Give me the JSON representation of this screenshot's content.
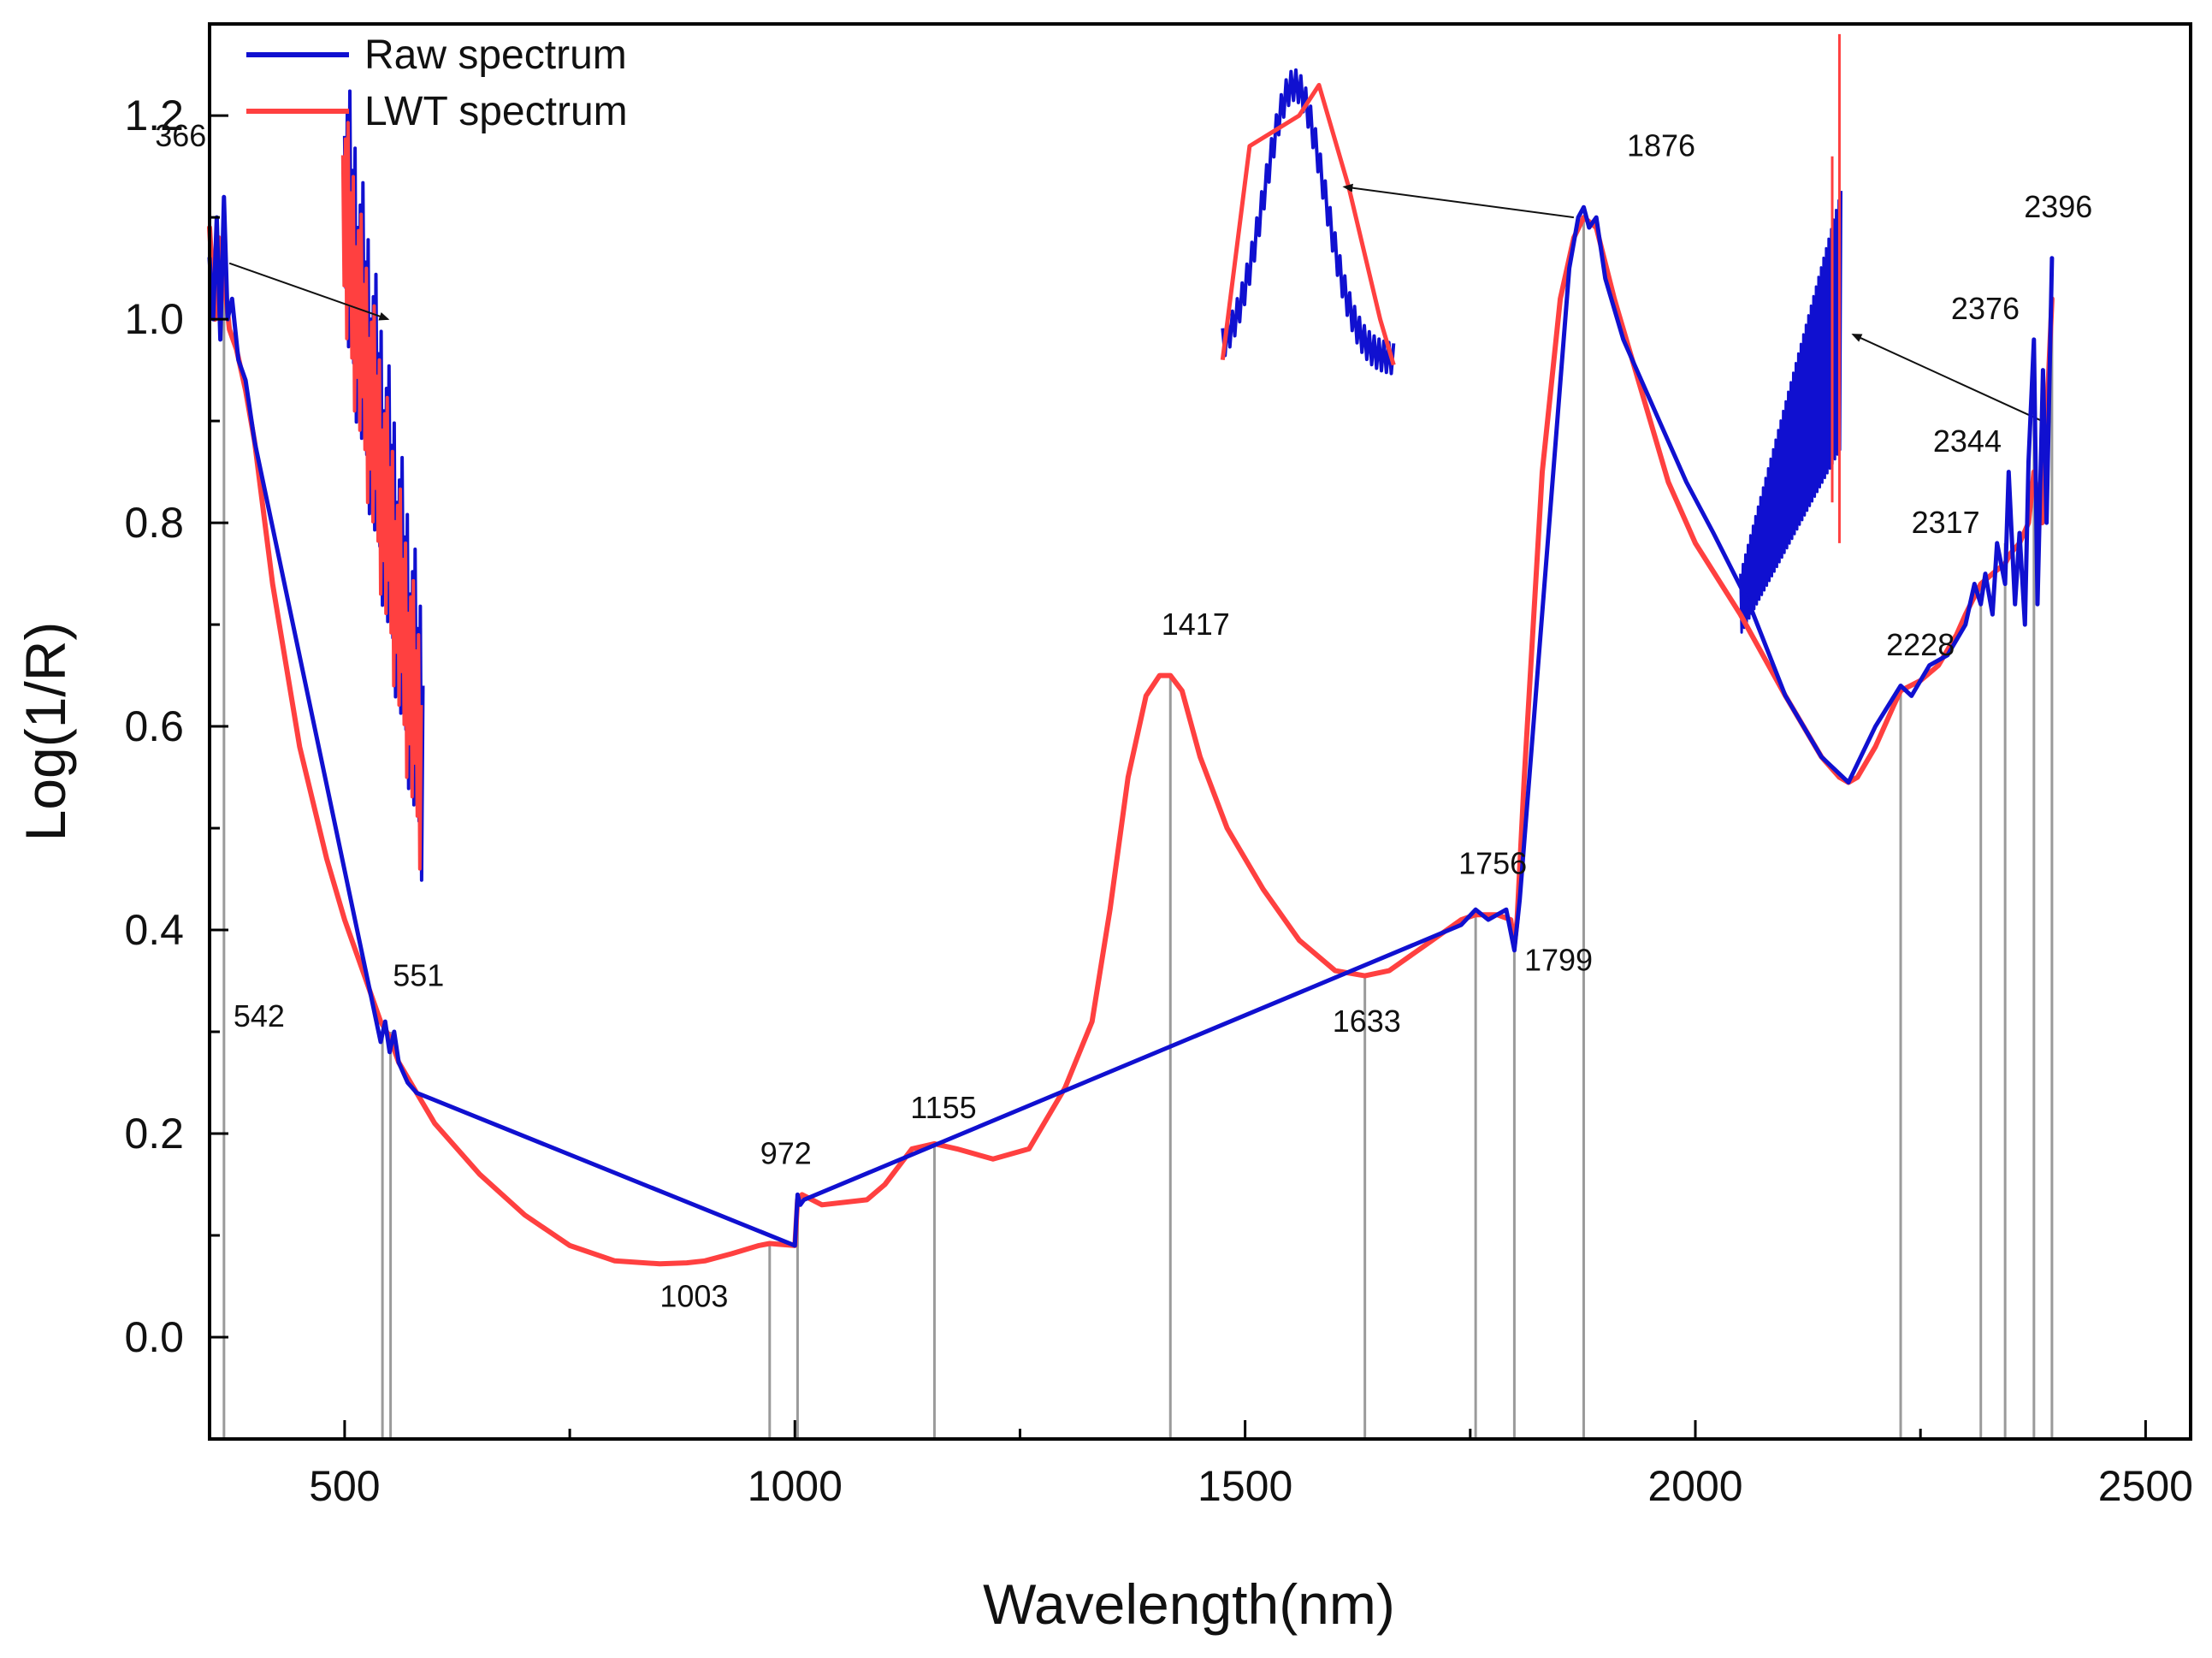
{
  "chart_data": {
    "type": "line",
    "title": "",
    "xlabel": "Wavelength(nm)",
    "ylabel": "Log(1/R)",
    "xlim": [
      350,
      2550
    ],
    "ylim": [
      -0.1,
      1.29
    ],
    "xticks": [
      500,
      1000,
      1500,
      2000,
      2500
    ],
    "xtick_labels": [
      "500",
      "1000",
      "1500",
      "2000",
      "2500"
    ],
    "yticks": [
      0.0,
      0.2,
      0.4,
      0.6,
      0.8,
      1.0,
      1.2
    ],
    "ytick_labels": [
      "0.0",
      "0.2",
      "0.4",
      "0.6",
      "0.8",
      "1.0",
      "1.2"
    ],
    "legend": {
      "position": "top-left",
      "entries": [
        {
          "label": "Raw spectrum",
          "color": "#1010d0"
        },
        {
          "label": "LWT spectrum",
          "color": "#ff4040"
        }
      ]
    },
    "series": [
      {
        "name": "LWT spectrum",
        "color": "#ff4040",
        "x": [
          350,
          356,
          360,
          366,
          372,
          380,
          390,
          400,
          420,
          450,
          480,
          500,
          520,
          540,
          550,
          560,
          580,
          600,
          650,
          700,
          750,
          800,
          850,
          880,
          900,
          930,
          960,
          972,
          1000,
          1003,
          1008,
          1030,
          1080,
          1100,
          1130,
          1155,
          1180,
          1220,
          1260,
          1300,
          1330,
          1350,
          1370,
          1390,
          1405,
          1417,
          1430,
          1450,
          1480,
          1520,
          1560,
          1600,
          1633,
          1660,
          1700,
          1740,
          1756,
          1780,
          1795,
          1799,
          1802,
          1810,
          1830,
          1850,
          1865,
          1876,
          1890,
          1910,
          1940,
          1970,
          2000,
          2050,
          2100,
          2140,
          2160,
          2170,
          2180,
          2200,
          2220,
          2228,
          2250,
          2270,
          2290,
          2300,
          2317,
          2330,
          2344,
          2350,
          2360,
          2370,
          2376,
          2385,
          2390,
          2396
        ],
        "y": [
          1.09,
          1.0,
          1.08,
          1.04,
          0.99,
          0.97,
          0.93,
          0.88,
          0.74,
          0.58,
          0.47,
          0.41,
          0.36,
          0.31,
          0.295,
          0.27,
          0.24,
          0.21,
          0.16,
          0.12,
          0.09,
          0.075,
          0.072,
          0.073,
          0.075,
          0.082,
          0.09,
          0.092,
          0.09,
          0.135,
          0.14,
          0.13,
          0.135,
          0.15,
          0.185,
          0.19,
          0.185,
          0.175,
          0.185,
          0.245,
          0.31,
          0.42,
          0.55,
          0.63,
          0.65,
          0.65,
          0.635,
          0.57,
          0.5,
          0.44,
          0.39,
          0.36,
          0.355,
          0.36,
          0.385,
          0.41,
          0.415,
          0.415,
          0.41,
          0.385,
          0.41,
          0.55,
          0.85,
          1.02,
          1.08,
          1.1,
          1.09,
          1.02,
          0.93,
          0.84,
          0.78,
          0.71,
          0.63,
          0.57,
          0.55,
          0.545,
          0.55,
          0.58,
          0.62,
          0.635,
          0.645,
          0.66,
          0.69,
          0.71,
          0.74,
          0.75,
          0.76,
          0.77,
          0.78,
          0.8,
          0.85,
          0.8,
          0.9,
          1.02
        ]
      },
      {
        "name": "Raw spectrum",
        "color": "#1010d0",
        "x": [
          350,
          354,
          358,
          362,
          366,
          370,
          375,
          382,
          390,
          400,
          540,
          545,
          550,
          555,
          560,
          565,
          570,
          575,
          580,
          1000,
          1003,
          1006,
          1010,
          1740,
          1756,
          1770,
          1790,
          1799,
          1805,
          1860,
          1870,
          1876,
          1882,
          1890,
          1900,
          1920,
          1960,
          1990,
          2020,
          2060,
          2100,
          2140,
          2170,
          2200,
          2228,
          2240,
          2260,
          2280,
          2300,
          2310,
          2317,
          2322,
          2330,
          2335,
          2344,
          2348,
          2355,
          2360,
          2366,
          2370,
          2376,
          2380,
          2386,
          2390,
          2396
        ],
        "y": [
          1.06,
          1.0,
          1.1,
          0.98,
          1.12,
          1.0,
          1.02,
          0.96,
          0.94,
          0.88,
          0.29,
          0.31,
          0.28,
          0.3,
          0.27,
          0.26,
          0.25,
          0.245,
          0.24,
          0.09,
          0.14,
          0.13,
          0.135,
          0.405,
          0.42,
          0.41,
          0.42,
          0.38,
          0.43,
          1.05,
          1.1,
          1.11,
          1.09,
          1.1,
          1.04,
          0.98,
          0.9,
          0.84,
          0.79,
          0.72,
          0.63,
          0.57,
          0.545,
          0.6,
          0.64,
          0.63,
          0.66,
          0.67,
          0.7,
          0.74,
          0.72,
          0.75,
          0.71,
          0.78,
          0.74,
          0.85,
          0.72,
          0.79,
          0.7,
          0.86,
          0.98,
          0.72,
          0.95,
          0.8,
          1.06
        ]
      }
    ],
    "peak_markers": [
      {
        "label": "366",
        "x": 366,
        "y": 1.04,
        "label_x": 318,
        "label_y": 1.17
      },
      {
        "label": "542",
        "x": 542,
        "y": 0.3,
        "label_x": 405,
        "label_y": 0.305
      },
      {
        "label": "551",
        "x": 551,
        "y": 0.3,
        "label_x": 582,
        "label_y": 0.345
      },
      {
        "label": "972",
        "x": 972,
        "y": 0.092,
        "label_x": 990,
        "label_y": 0.17
      },
      {
        "label": "1003",
        "x": 1003,
        "y": 0.135,
        "label_x": 888,
        "label_y": 0.03
      },
      {
        "label": "1155",
        "x": 1155,
        "y": 0.19,
        "label_x": 1165,
        "label_y": 0.215
      },
      {
        "label": "1417",
        "x": 1417,
        "y": 0.65,
        "label_x": 1445,
        "label_y": 0.69
      },
      {
        "label": "1633",
        "x": 1633,
        "y": 0.355,
        "label_x": 1635,
        "label_y": 0.3
      },
      {
        "label": "1756",
        "x": 1756,
        "y": 0.415,
        "label_x": 1775,
        "label_y": 0.455
      },
      {
        "label": "1799",
        "x": 1799,
        "y": 0.385,
        "label_x": 1848,
        "label_y": 0.36
      },
      {
        "label": "1876",
        "x": 1876,
        "y": 1.1,
        "label_x": 1962,
        "label_y": 1.16
      },
      {
        "label": "2228",
        "x": 2228,
        "y": 0.635,
        "label_x": 2250,
        "label_y": 0.67
      },
      {
        "label": "2317",
        "x": 2317,
        "y": 0.74,
        "label_x": 2278,
        "label_y": 0.79
      },
      {
        "label": "2344",
        "x": 2344,
        "y": 0.78,
        "label_x": 2302,
        "label_y": 0.87
      },
      {
        "label": "2376",
        "x": 2376,
        "y": 0.98,
        "label_x": 2322,
        "label_y": 1.0
      },
      {
        "label": "2396",
        "x": 2396,
        "y": 1.02,
        "label_x": 2403,
        "label_y": 1.1
      }
    ]
  }
}
